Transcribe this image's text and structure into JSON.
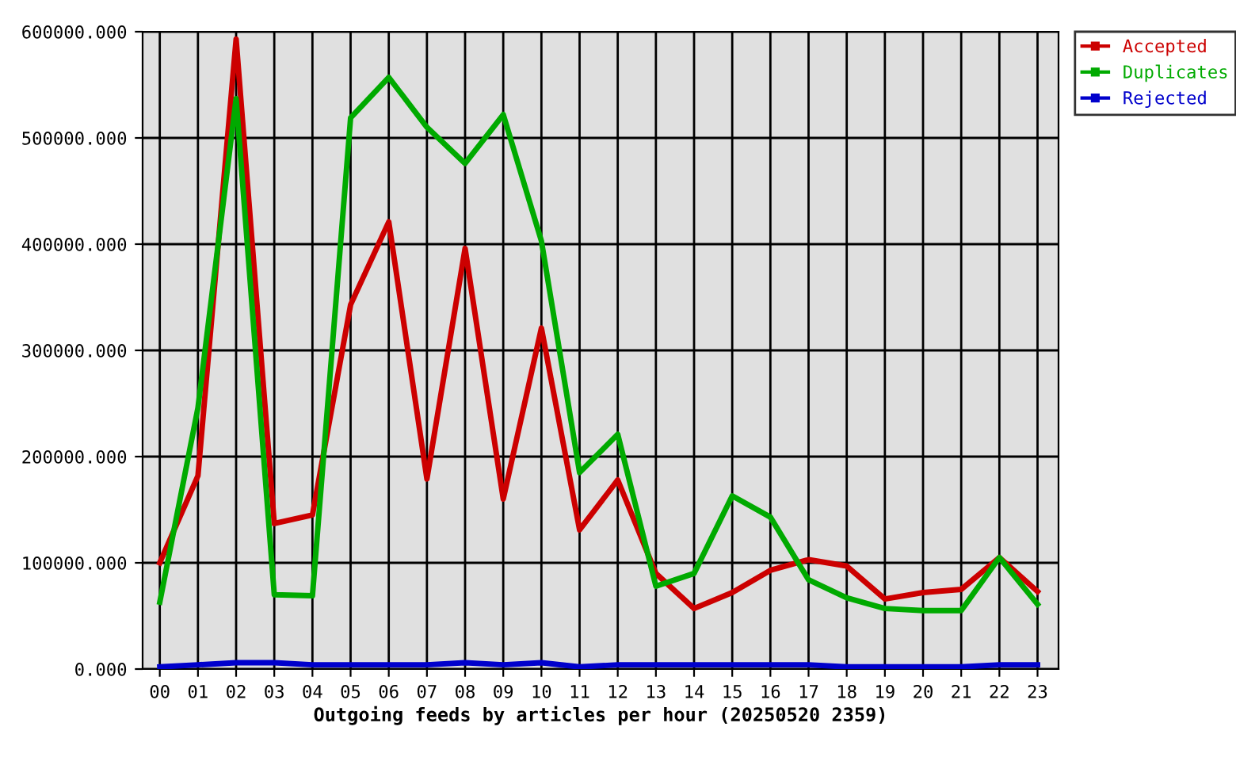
{
  "chart_data": {
    "type": "line",
    "xlabel": "Outgoing feeds by articles per hour (20250520 2359)",
    "categories": [
      "00",
      "01",
      "02",
      "03",
      "04",
      "05",
      "06",
      "07",
      "08",
      "09",
      "10",
      "11",
      "12",
      "13",
      "14",
      "15",
      "16",
      "17",
      "18",
      "19",
      "20",
      "21",
      "22",
      "23"
    ],
    "series": [
      {
        "name": "Accepted",
        "color": "#cc0000",
        "values": [
          100000,
          182000,
          593000,
          137000,
          145000,
          343000,
          421000,
          179000,
          396000,
          160000,
          321000,
          131000,
          178000,
          90000,
          57000,
          72000,
          93000,
          103000,
          97000,
          66000,
          72000,
          75000,
          105000,
          73000
        ]
      },
      {
        "name": "Duplicates",
        "color": "#00aa00",
        "values": [
          63000,
          246000,
          537000,
          70000,
          69000,
          519000,
          557000,
          510000,
          476000,
          522000,
          403000,
          185000,
          221000,
          78000,
          90000,
          163000,
          143000,
          84000,
          67000,
          57000,
          55000,
          55000,
          105000,
          61000
        ]
      },
      {
        "name": "Rejected",
        "color": "#0000cc",
        "values": [
          2000,
          4000,
          6000,
          6000,
          4000,
          4000,
          4000,
          4000,
          6000,
          4000,
          6000,
          2000,
          4000,
          4000,
          4000,
          4000,
          4000,
          4000,
          2000,
          2000,
          2000,
          2000,
          4000,
          4000
        ]
      }
    ],
    "ylim": [
      0,
      600000
    ],
    "yticks": [
      {
        "value": 0,
        "label": "0.000"
      },
      {
        "value": 100000,
        "label": "100000.000"
      },
      {
        "value": 200000,
        "label": "200000.000"
      },
      {
        "value": 300000,
        "label": "300000.000"
      },
      {
        "value": 400000,
        "label": "400000.000"
      },
      {
        "value": 500000,
        "label": "500000.000"
      },
      {
        "value": 600000,
        "label": "600000.000"
      }
    ],
    "grid": true,
    "legend": "top right"
  }
}
